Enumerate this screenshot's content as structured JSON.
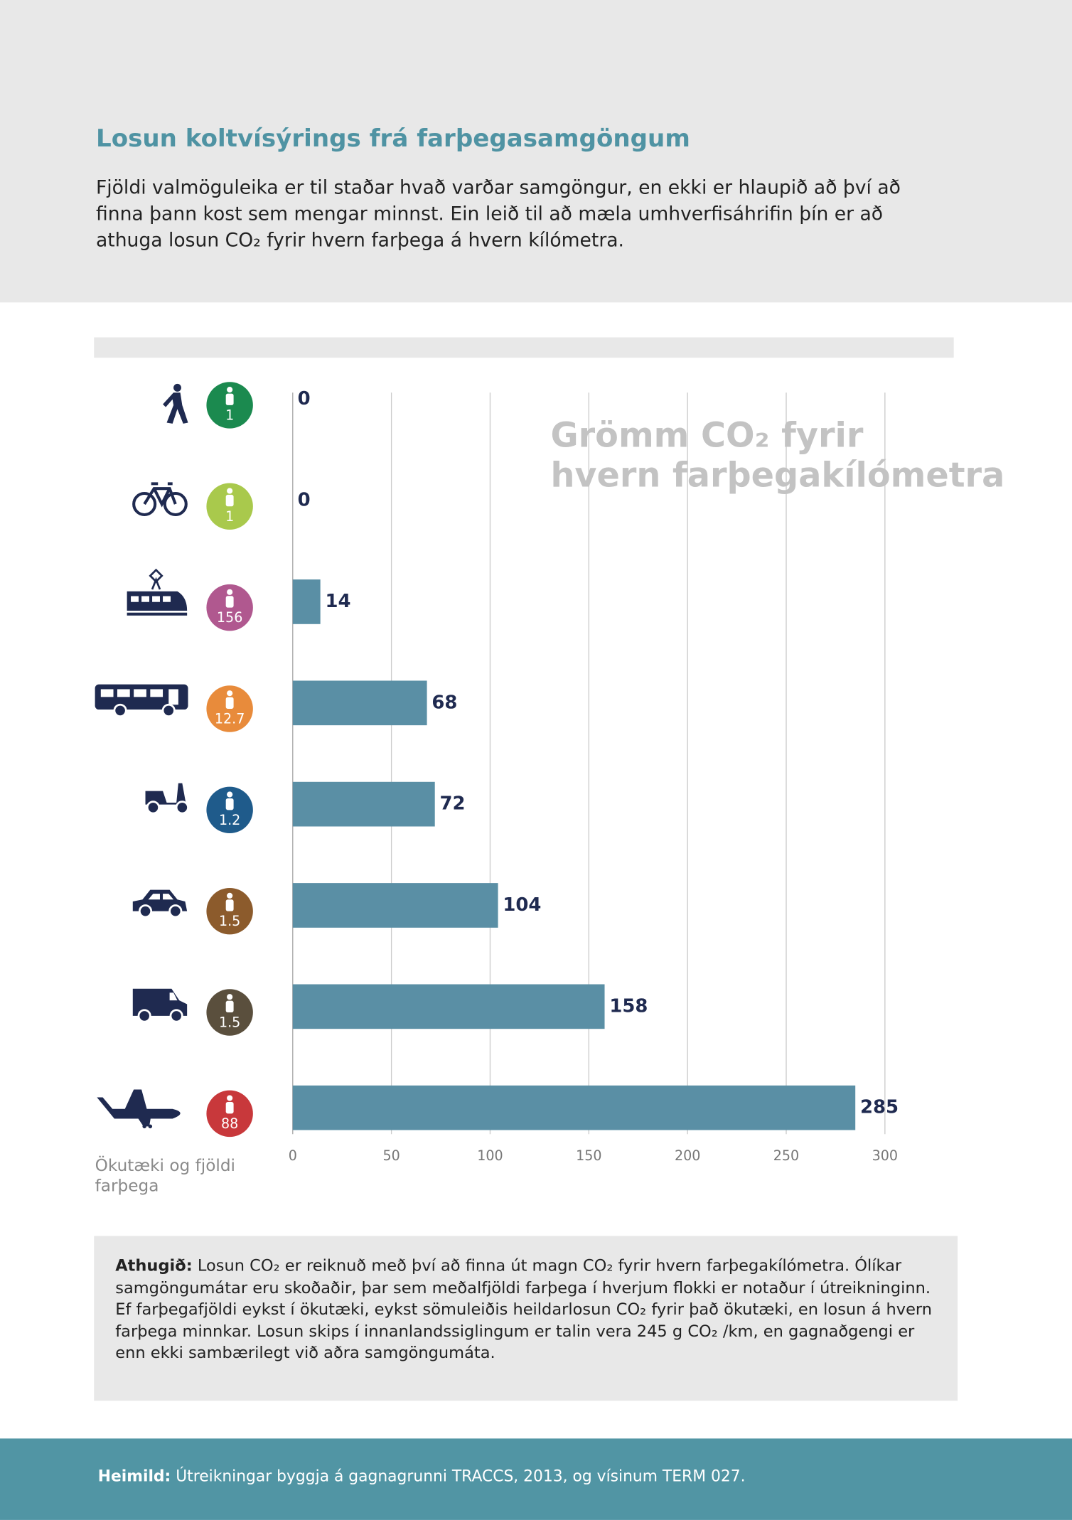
{
  "header": {
    "title": "Losun koltvísýrings frá farþegasamgöngum",
    "intro": "Fjöldi valmöguleika er til staðar hvað varðar samgöngur, en ekki er hlaupið að því að finna þann kost sem mengar minnst. Ein leið til að mæla umhverfisáhrifin þín er að athuga losun CO₂ fyrir hvern farþega á hvern kílómetra."
  },
  "chart_data": {
    "type": "bar",
    "orientation": "horizontal",
    "values": [
      0,
      0,
      14,
      68,
      72,
      104,
      158,
      285
    ],
    "color": "#5a8fa5",
    "passengers": [
      1,
      1,
      156,
      12.7,
      1.2,
      1.5,
      1.5,
      88
    ],
    "passenger_colors": [
      "#1b8a4f",
      "#a9c94c",
      "#b0588f",
      "#e88b3b",
      "#1f5b8b",
      "#8c5b2c",
      "#5a4f3d",
      "#c8383b"
    ],
    "xlim": [
      0,
      300
    ],
    "xticks": [
      0,
      50,
      100,
      150,
      200,
      250,
      300
    ],
    "grid": true,
    "annotation": [
      "Grömm CO₂ fyrir",
      "hvern farþegakílómetra"
    ],
    "ylabel": "Ökutæki og fjöldi farþega"
  },
  "note": {
    "label": "Athugið:",
    "text": "Losun CO₂ er reiknuð með því að finna út magn CO₂ fyrir hvern farþegakílómetra. Ólíkar samgöngumátar eru skoðaðir, þar sem meðalfjöldi farþega í hverjum flokki er notaður í útreikninginn. Ef farþegafjöldi eykst í ökutæki, eykst sömuleiðis heildarlosun CO₂ fyrir það ökutæki, en losun á hvern farþega minnkar. Losun skips í innanlandssiglingum er talin vera 245 g CO₂ /km, en gagnaðgengi er enn ekki sambærilegt við aðra samgöngumáta."
  },
  "source": {
    "label": "Heimild:",
    "text": "Útreikningar byggja á gagnagrunni TRACCS, 2013, og vísinum TERM 027."
  }
}
